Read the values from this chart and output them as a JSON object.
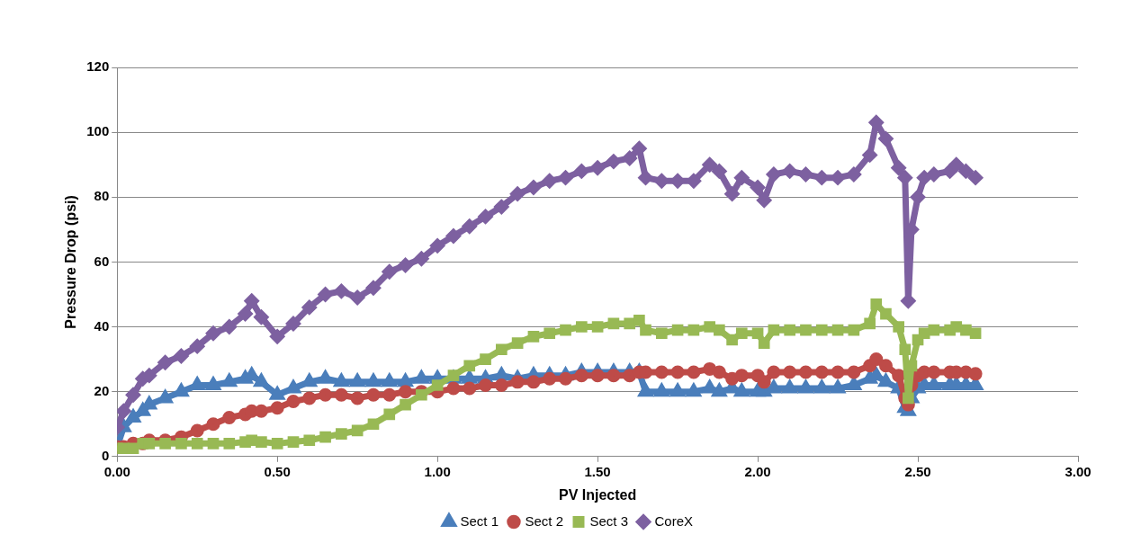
{
  "chart_data": {
    "type": "line",
    "xlabel": "PV Injected",
    "ylabel": "Pressure Drop (psi)",
    "x": [
      0,
      0.02,
      0.05,
      0.08,
      0.1,
      0.15,
      0.2,
      0.25,
      0.3,
      0.35,
      0.4,
      0.42,
      0.45,
      0.5,
      0.55,
      0.6,
      0.65,
      0.7,
      0.75,
      0.8,
      0.85,
      0.9,
      0.95,
      1.0,
      1.05,
      1.1,
      1.15,
      1.2,
      1.25,
      1.3,
      1.35,
      1.4,
      1.45,
      1.5,
      1.55,
      1.6,
      1.63,
      1.65,
      1.7,
      1.75,
      1.8,
      1.85,
      1.88,
      1.92,
      1.95,
      2.0,
      2.02,
      2.05,
      2.1,
      2.15,
      2.2,
      2.25,
      2.3,
      2.35,
      2.37,
      2.4,
      2.44,
      2.46,
      2.47,
      2.48,
      2.5,
      2.52,
      2.55,
      2.6,
      2.62,
      2.65,
      2.68
    ],
    "series": [
      {
        "name": "Sect 1",
        "color": "#4a7ebb",
        "marker": "triangle",
        "values": [
          3,
          9,
          12,
          14,
          16,
          18,
          20,
          22,
          22,
          23,
          24,
          25,
          23,
          19,
          21,
          23,
          24,
          23,
          23,
          23,
          23,
          23,
          24,
          24,
          24,
          24,
          24,
          25,
          24,
          25,
          25,
          25,
          26,
          26,
          26,
          26,
          26,
          20,
          20,
          20,
          20,
          21,
          20,
          21,
          20,
          20,
          20,
          21,
          21,
          21,
          21,
          21,
          22,
          24,
          25,
          23,
          21,
          15,
          14,
          18,
          21,
          22,
          22,
          22,
          22,
          22,
          22
        ]
      },
      {
        "name": "Sect 2",
        "color": "#be4b48",
        "marker": "circle",
        "values": [
          3,
          3,
          4,
          4,
          5,
          5,
          6,
          8,
          10,
          12,
          13,
          14,
          14,
          15,
          17,
          18,
          19,
          19,
          18,
          19,
          19,
          20,
          20,
          20,
          21,
          21,
          22,
          22,
          23,
          23,
          24,
          24,
          25,
          25,
          25,
          25,
          26,
          26,
          26,
          26,
          26,
          27,
          26,
          24,
          25,
          25,
          23,
          26,
          26,
          26,
          26,
          26,
          26,
          28,
          30,
          28,
          25,
          18,
          16,
          22,
          25,
          26,
          26,
          26,
          26,
          26,
          25.5
        ]
      },
      {
        "name": "Sect 3",
        "color": "#98b954",
        "marker": "square",
        "values": [
          2.5,
          2.5,
          2.5,
          4,
          4,
          4,
          4,
          4,
          4,
          4,
          4.5,
          5,
          4.5,
          4,
          4.5,
          5,
          6,
          7,
          8,
          10,
          13,
          16,
          19,
          22,
          25,
          28,
          30,
          33,
          35,
          37,
          38,
          39,
          40,
          40,
          41,
          41,
          42,
          39,
          38,
          39,
          39,
          40,
          39,
          36,
          38,
          38,
          35,
          39,
          39,
          39,
          39,
          39,
          39,
          41,
          47,
          44,
          40,
          33,
          18,
          28,
          36,
          38,
          39,
          39,
          40,
          39,
          38
        ]
      },
      {
        "name": "CoreX",
        "color": "#7d60a0",
        "marker": "diamond",
        "values": [
          9,
          14,
          19,
          24,
          25,
          29,
          31,
          34,
          38,
          40,
          44,
          48,
          43,
          37,
          41,
          46,
          50,
          51,
          49,
          52,
          57,
          59,
          61,
          65,
          68,
          71,
          74,
          77,
          81,
          83,
          85,
          86,
          88,
          89,
          91,
          92,
          95,
          86,
          85,
          85,
          85,
          90,
          88,
          81,
          86,
          83,
          79,
          87,
          88,
          87,
          86,
          86,
          87,
          93,
          103,
          98,
          89,
          86,
          48,
          70,
          80,
          86,
          87,
          88,
          90,
          88,
          86
        ]
      }
    ],
    "xlim": [
      0,
      3
    ],
    "xticks": [
      {
        "value": 0,
        "label": "0.00"
      },
      {
        "value": 0.5,
        "label": "0.50"
      },
      {
        "value": 1,
        "label": "1.00"
      },
      {
        "value": 1.5,
        "label": "1.50"
      },
      {
        "value": 2,
        "label": "2.00"
      },
      {
        "value": 2.5,
        "label": "2.50"
      },
      {
        "value": 3,
        "label": "3.00"
      }
    ],
    "ylim": [
      0,
      120
    ],
    "yticks": [
      0,
      20,
      40,
      60,
      80,
      100,
      120
    ],
    "grid": "y",
    "legend": "bottom",
    "line_style": "solid"
  }
}
